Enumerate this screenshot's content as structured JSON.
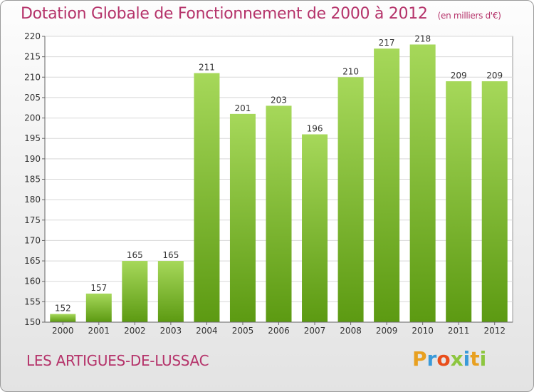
{
  "title": "Dotation Globale de Fonctionnement de 2000 à 2012",
  "units": "(en milliers d'€)",
  "commune": "LES ARTIGUES-DE-LUSSAC",
  "logo": {
    "letters": [
      "P",
      "r",
      "o",
      "x",
      "i",
      "t",
      "i"
    ],
    "colors": [
      "#e8a020",
      "#3a9ad9",
      "#e94e1b",
      "#8dc63f",
      "#3a9ad9",
      "#e8a020",
      "#8dc63f"
    ]
  },
  "colors": {
    "bar_top": "#a6d85a",
    "bar_bottom": "#5c9a12",
    "title": "#b5336a"
  },
  "chart_data": {
    "type": "bar",
    "categories": [
      "2000",
      "2001",
      "2002",
      "2003",
      "2004",
      "2005",
      "2006",
      "2007",
      "2008",
      "2009",
      "2010",
      "2011",
      "2012"
    ],
    "values": [
      152,
      157,
      165,
      165,
      211,
      201,
      203,
      196,
      210,
      217,
      218,
      209,
      209
    ],
    "title": "Dotation Globale de Fonctionnement de 2000 à 2012",
    "ylim": [
      150,
      220
    ],
    "yticks": [
      150,
      155,
      160,
      165,
      170,
      175,
      180,
      185,
      190,
      195,
      200,
      205,
      210,
      215,
      220
    ],
    "grid": true,
    "legend": "none"
  }
}
